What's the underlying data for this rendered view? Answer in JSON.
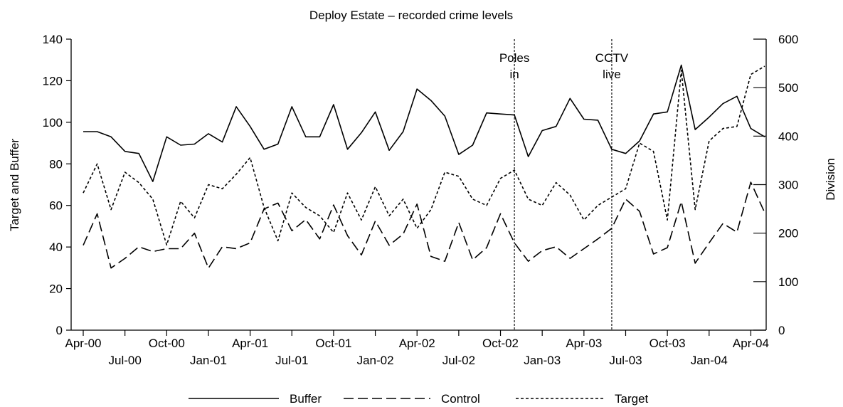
{
  "chart_data": {
    "type": "line",
    "title": "Deploy Estate – recorded crime levels",
    "ylabel": "Target and Buffer",
    "y2label": "Division",
    "ylim": [
      0,
      140
    ],
    "y2lim": [
      0,
      600
    ],
    "yticks": [
      0,
      20,
      40,
      60,
      80,
      100,
      120,
      140
    ],
    "y2ticks": [
      0,
      100,
      200,
      300,
      400,
      500,
      600
    ],
    "xrange": [
      0,
      49
    ],
    "xticks": [
      {
        "i": 0,
        "label": "Apr-00",
        "row": 0
      },
      {
        "i": 3,
        "label": "Jul-00",
        "row": 1
      },
      {
        "i": 6,
        "label": "Oct-00",
        "row": 0
      },
      {
        "i": 9,
        "label": "Jan-01",
        "row": 1
      },
      {
        "i": 12,
        "label": "Apr-01",
        "row": 0
      },
      {
        "i": 15,
        "label": "Jul-01",
        "row": 1
      },
      {
        "i": 18,
        "label": "Oct-01",
        "row": 0
      },
      {
        "i": 21,
        "label": "Jan-02",
        "row": 1
      },
      {
        "i": 24,
        "label": "Apr-02",
        "row": 0
      },
      {
        "i": 27,
        "label": "Jul-02",
        "row": 1
      },
      {
        "i": 30,
        "label": "Oct-02",
        "row": 0
      },
      {
        "i": 33,
        "label": "Jan-03",
        "row": 1
      },
      {
        "i": 36,
        "label": "Apr-03",
        "row": 0
      },
      {
        "i": 39,
        "label": "Jul-03",
        "row": 1
      },
      {
        "i": 42,
        "label": "Oct-03",
        "row": 0
      },
      {
        "i": 45,
        "label": "Jan-04",
        "row": 1
      },
      {
        "i": 48,
        "label": "Apr-04",
        "row": 0
      }
    ],
    "annotations": [
      {
        "i": 31,
        "lines": [
          "Poles",
          "in"
        ]
      },
      {
        "i": 38,
        "lines": [
          "CCTV",
          "live"
        ]
      }
    ],
    "legend": {
      "position": "bottom"
    },
    "series": [
      {
        "name": "Buffer",
        "style": "solid",
        "axis": "left",
        "values": [
          95.5,
          95.5,
          93,
          86,
          85,
          71.5,
          93,
          89,
          89.5,
          94.5,
          90.5,
          107.5,
          98,
          87,
          89.5,
          107.5,
          93,
          93,
          108.5,
          87,
          95,
          105,
          86.5,
          95.5,
          116,
          110.5,
          103,
          84.5,
          89,
          104.5,
          104,
          103.5,
          83.5,
          96,
          98,
          111.5,
          101.5,
          101,
          87,
          85,
          91,
          104,
          105,
          127.5,
          96.5,
          102.5,
          109,
          112.5,
          97,
          93
        ]
      },
      {
        "name": "Control",
        "style": "dashed",
        "axis": "right",
        "values": [
          175,
          240,
          128,
          148,
          172,
          162,
          168,
          168,
          200,
          128,
          172,
          168,
          180,
          250,
          262,
          205,
          228,
          188,
          258,
          195,
          155,
          225,
          175,
          198,
          260,
          152,
          142,
          222,
          145,
          170,
          240,
          180,
          142,
          164,
          172,
          148,
          168,
          188,
          210,
          270,
          245,
          157,
          170,
          265,
          138,
          180,
          220,
          202,
          305,
          242
        ]
      },
      {
        "name": "Target",
        "style": "dotted",
        "axis": "left",
        "values": [
          66,
          80,
          58,
          76,
          71,
          63,
          41,
          62,
          54,
          70,
          68,
          75,
          83,
          59,
          43,
          66,
          59,
          55,
          47,
          66,
          53,
          69,
          55,
          63,
          49,
          58,
          76,
          74,
          63,
          60,
          73,
          77,
          63,
          60,
          71,
          65,
          53,
          60,
          64,
          68,
          90,
          86,
          53,
          125,
          58,
          91,
          97,
          98,
          123,
          127
        ]
      }
    ]
  }
}
